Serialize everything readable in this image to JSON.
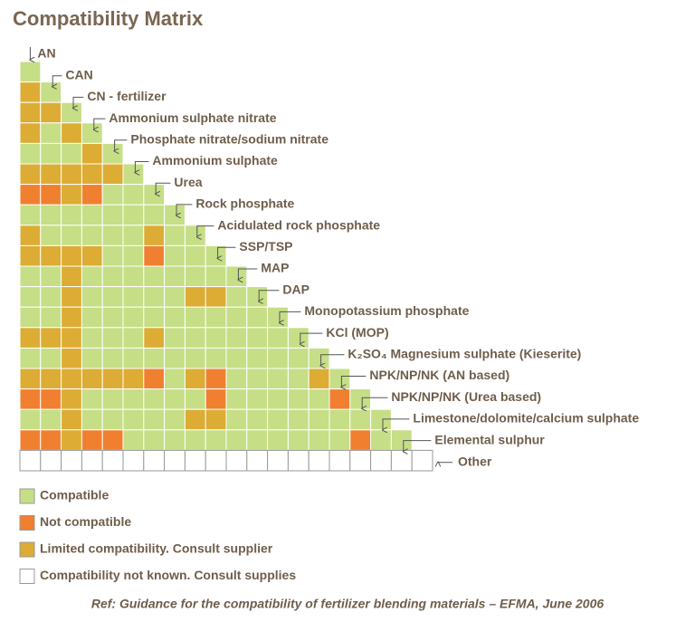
{
  "title": "Compatibility Matrix",
  "materials": [
    "AN",
    "CAN",
    "CN - fertilizer",
    "Ammonium  sulphate nitrate",
    "Phosphate nitrate/sodium nitrate",
    "Ammonium  sulphate",
    "Urea",
    "Rock phosphate",
    "Acidulated rock phosphate",
    "SSP/TSP",
    "MAP",
    "DAP",
    "Monopotassium phosphate",
    "KCl (MOP)",
    "K₂SO₄ Magnesium sulphate (Kieserite)",
    "NPK/NP/NK (AN based)",
    "NPK/NP/NK (Urea based)",
    "Limestone/dolomite/calcium sulphate",
    "Elemental sulphur",
    "Other"
  ],
  "matrix": [
    [
      "#c6de86"
    ],
    [
      "#dcac34",
      "#c6de86"
    ],
    [
      "#dcac34",
      "#dcac34",
      "#c6de86"
    ],
    [
      "#dcac34",
      "#c6de86",
      "#dcac34",
      "#c6de86"
    ],
    [
      "#c6de86",
      "#c6de86",
      "#c6de86",
      "#dcac34",
      "#c6de86"
    ],
    [
      "#dcac34",
      "#dcac34",
      "#dcac34",
      "#dcac34",
      "#dcac34",
      "#c6de86"
    ],
    [
      "#f08030",
      "#f08030",
      "#dcac34",
      "#f08030",
      "#c6de86",
      "#c6de86",
      "#c6de86"
    ],
    [
      "#c6de86",
      "#c6de86",
      "#c6de86",
      "#c6de86",
      "#c6de86",
      "#c6de86",
      "#c6de86",
      "#c6de86"
    ],
    [
      "#dcac34",
      "#c6de86",
      "#c6de86",
      "#c6de86",
      "#c6de86",
      "#c6de86",
      "#dcac34",
      "#c6de86",
      "#c6de86"
    ],
    [
      "#dcac34",
      "#dcac34",
      "#dcac34",
      "#dcac34",
      "#c6de86",
      "#c6de86",
      "#f08030",
      "#c6de86",
      "#c6de86",
      "#c6de86"
    ],
    [
      "#c6de86",
      "#c6de86",
      "#dcac34",
      "#c6de86",
      "#c6de86",
      "#c6de86",
      "#c6de86",
      "#c6de86",
      "#c6de86",
      "#c6de86",
      "#c6de86"
    ],
    [
      "#c6de86",
      "#c6de86",
      "#dcac34",
      "#c6de86",
      "#c6de86",
      "#c6de86",
      "#c6de86",
      "#c6de86",
      "#dcac34",
      "#dcac34",
      "#c6de86",
      "#c6de86"
    ],
    [
      "#c6de86",
      "#c6de86",
      "#dcac34",
      "#c6de86",
      "#c6de86",
      "#c6de86",
      "#c6de86",
      "#c6de86",
      "#c6de86",
      "#c6de86",
      "#c6de86",
      "#c6de86",
      "#c6de86"
    ],
    [
      "#dcac34",
      "#dcac34",
      "#dcac34",
      "#c6de86",
      "#c6de86",
      "#c6de86",
      "#dcac34",
      "#c6de86",
      "#c6de86",
      "#c6de86",
      "#c6de86",
      "#c6de86",
      "#c6de86",
      "#c6de86"
    ],
    [
      "#c6de86",
      "#c6de86",
      "#dcac34",
      "#c6de86",
      "#c6de86",
      "#c6de86",
      "#c6de86",
      "#c6de86",
      "#c6de86",
      "#c6de86",
      "#c6de86",
      "#c6de86",
      "#c6de86",
      "#c6de86",
      "#c6de86"
    ],
    [
      "#dcac34",
      "#dcac34",
      "#dcac34",
      "#dcac34",
      "#dcac34",
      "#dcac34",
      "#f08030",
      "#c6de86",
      "#dcac34",
      "#f08030",
      "#c6de86",
      "#c6de86",
      "#c6de86",
      "#c6de86",
      "#dcac34",
      "#c6de86"
    ],
    [
      "#f08030",
      "#f08030",
      "#dcac34",
      "#c6de86",
      "#c6de86",
      "#c6de86",
      "#c6de86",
      "#c6de86",
      "#c6de86",
      "#f08030",
      "#c6de86",
      "#c6de86",
      "#c6de86",
      "#c6de86",
      "#c6de86",
      "#f08030",
      "#c6de86"
    ],
    [
      "#c6de86",
      "#c6de86",
      "#dcac34",
      "#c6de86",
      "#c6de86",
      "#c6de86",
      "#c6de86",
      "#c6de86",
      "#dcac34",
      "#dcac34",
      "#c6de86",
      "#c6de86",
      "#c6de86",
      "#c6de86",
      "#c6de86",
      "#c6de86",
      "#c6de86",
      "#c6de86"
    ],
    [
      "#f08030",
      "#f08030",
      "#dcac34",
      "#f08030",
      "#f08030",
      "#c6de86",
      "#c6de86",
      "#c6de86",
      "#c6de86",
      "#c6de86",
      "#c6de86",
      "#c6de86",
      "#c6de86",
      "#c6de86",
      "#c6de86",
      "#c6de86",
      "#f08030",
      "#c6de86",
      "#c6de86"
    ],
    [
      "#ffffff",
      "#ffffff",
      "#ffffff",
      "#ffffff",
      "#ffffff",
      "#ffffff",
      "#ffffff",
      "#ffffff",
      "#ffffff",
      "#ffffff",
      "#ffffff",
      "#ffffff",
      "#ffffff",
      "#ffffff",
      "#ffffff",
      "#ffffff",
      "#ffffff",
      "#ffffff",
      "#ffffff",
      "#ffffff"
    ]
  ],
  "legend": [
    {
      "color": "#c6de86",
      "label": "Compatible"
    },
    {
      "color": "#f08030",
      "label": "Not compatible"
    },
    {
      "color": "#dcac34",
      "label": "Limited compatibility.  Consult supplier"
    },
    {
      "color": "#ffffff",
      "label": "Compatibility  not known.  Consult supplies"
    }
  ],
  "reference": "Ref: Guidance for the compatibility  of fertilizer blending materials – EFMA, June 2006"
}
